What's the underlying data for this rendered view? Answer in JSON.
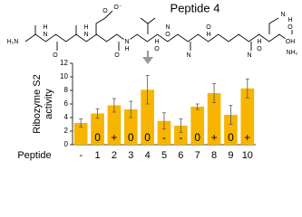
{
  "structure": {
    "title": "Peptide 4",
    "atoms": [
      "H₂N",
      "N",
      "H",
      "O",
      "N",
      "H",
      "O",
      "O",
      "O⁻",
      "N",
      "H",
      "O",
      "N",
      "H",
      "O",
      "N",
      "H",
      "O",
      "N",
      "H",
      "O",
      "N",
      "H",
      "OH",
      "NH₂",
      "O"
    ]
  },
  "chart_data": {
    "type": "bar",
    "ylabel": [
      "Ribozyme S2",
      "activity"
    ],
    "xlabel": "Peptide",
    "categories": [
      "-",
      "1",
      "2",
      "3",
      "4",
      "5",
      "6",
      "7",
      "8",
      "9",
      "10"
    ],
    "values": [
      3.2,
      4.6,
      5.8,
      5.2,
      8.1,
      3.5,
      2.8,
      5.6,
      7.6,
      4.4,
      8.3
    ],
    "errors": [
      0.6,
      0.7,
      1.0,
      1.2,
      2.1,
      1.2,
      1.0,
      0.4,
      1.4,
      1.4,
      1.4
    ],
    "bar_labels": [
      null,
      "0",
      "+",
      "0",
      "0",
      "-",
      "-",
      "0",
      "+",
      "0",
      "+"
    ],
    "color": "#f7b500",
    "ylim": [
      0,
      12
    ],
    "yticks": [
      0,
      2,
      4,
      6,
      8,
      10,
      12
    ]
  }
}
